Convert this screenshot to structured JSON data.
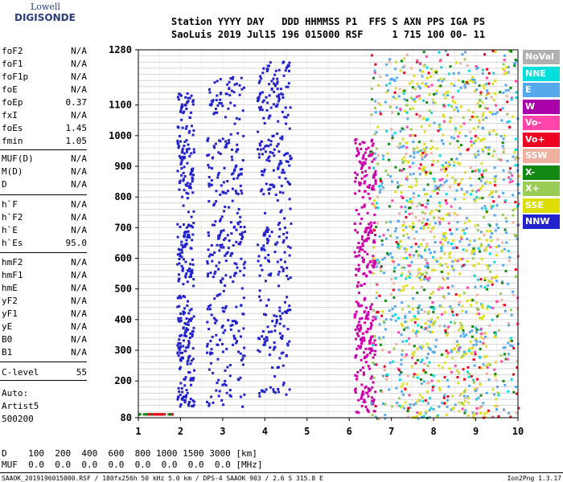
{
  "logo": {
    "line1": "Lowell",
    "line2": "DIGISONDE"
  },
  "header": {
    "line1": "Station YYYY DAY   DDD HHMMSS P1  FFS S AXN PPS IGA PS",
    "line2": "SaoLuis 2019 Jul15 196 015000 RSF     1 715 100 00- 11"
  },
  "params": [
    {
      "name": "foF2",
      "value": "N/A"
    },
    {
      "name": "foF1",
      "value": "N/A"
    },
    {
      "name": "foF1p",
      "value": "N/A"
    },
    {
      "name": "foE",
      "value": "N/A"
    },
    {
      "name": "foEp",
      "value": "0.37"
    },
    {
      "name": "fxI",
      "value": "N/A"
    },
    {
      "name": "foEs",
      "value": "1.45"
    },
    {
      "name": "fmin",
      "value": "1.05"
    },
    {
      "name": "MUF(D)",
      "value": "N/A"
    },
    {
      "name": "M(D)",
      "value": "N/A"
    },
    {
      "name": "D",
      "value": "N/A"
    },
    {
      "name": "h`F",
      "value": "N/A"
    },
    {
      "name": "h`F2",
      "value": "N/A"
    },
    {
      "name": "h`E",
      "value": "N/A"
    },
    {
      "name": "h`Es",
      "value": "95.0"
    },
    {
      "name": "hmF2",
      "value": "N/A"
    },
    {
      "name": "hmF1",
      "value": "N/A"
    },
    {
      "name": "hmE",
      "value": "N/A"
    },
    {
      "name": "yF2",
      "value": "N/A"
    },
    {
      "name": "yF1",
      "value": "N/A"
    },
    {
      "name": "yE",
      "value": "N/A"
    },
    {
      "name": "B0",
      "value": "N/A"
    },
    {
      "name": "B1",
      "value": "N/A"
    },
    {
      "name": "C-level",
      "value": "55"
    }
  ],
  "autoscale": {
    "line1": "Auto:",
    "line2": "Artist5",
    "line3": "500200"
  },
  "chart_data": {
    "type": "scatter",
    "x_ticks": [
      "1",
      "2",
      "3",
      "4",
      "5",
      "6",
      "7",
      "8",
      "9",
      "10"
    ],
    "y_ticks": [
      "80",
      "200",
      "300",
      "400",
      "500",
      "600",
      "700",
      "800",
      "900",
      "1000",
      "1100",
      "1280"
    ],
    "xlim": [
      1,
      10
    ],
    "ylim": [
      80,
      1280
    ],
    "grid": true,
    "legend_position": "right",
    "ionogram_echo_traces": [
      {
        "color": "#2222cc",
        "x_range": [
          1.9,
          2.3
        ],
        "y_range": [
          120,
          1150
        ]
      },
      {
        "color": "#2222cc",
        "x_range": [
          2.6,
          3.5
        ],
        "y_range": [
          120,
          1200
        ]
      },
      {
        "color": "#2222cc",
        "x_range": [
          3.8,
          4.6
        ],
        "y_range": [
          150,
          1250
        ]
      },
      {
        "color": "#cc00aa",
        "x_range": [
          6.1,
          6.6
        ],
        "y_range": [
          100,
          1000
        ]
      },
      {
        "color": "#55aaee",
        "x_range": [
          6.6,
          10
        ],
        "y_range": [
          80,
          1280
        ]
      },
      {
        "color": "#dddd22",
        "x_range": [
          7.2,
          9.5
        ],
        "y_range": [
          80,
          1200
        ]
      }
    ]
  },
  "legend": [
    {
      "label": "NoVal",
      "color": "#b0b0b0"
    },
    {
      "label": "NNE",
      "color": "#00dede"
    },
    {
      "label": "E",
      "color": "#55aaee"
    },
    {
      "label": "W",
      "color": "#aa00aa"
    },
    {
      "label": "Vo-",
      "color": "#ff44aa"
    },
    {
      "label": "Vo+",
      "color": "#ee0022"
    },
    {
      "label": "SSW",
      "color": "#f0b0a0"
    },
    {
      "label": "X-",
      "color": "#118811"
    },
    {
      "label": "X+",
      "color": "#99cc55"
    },
    {
      "label": "SSE",
      "color": "#dddd00"
    },
    {
      "label": "NNW",
      "color": "#2222cc"
    }
  ],
  "bottom": {
    "d_row": "D    100  200  400  600  800 1000 1500 3000 [km]",
    "muf_row": "MUF  0.0  0.0  0.0  0.0  0.0  0.0  0.0  0.0 [MHz]",
    "footer": "SAAOK_2019196015000.RSF / 180fx256h 50 kHz 5.0 km / DPS-4 SAAOK 903 / 2.6 S 315.8 E",
    "version": "Ion2Png 1.3.17"
  }
}
